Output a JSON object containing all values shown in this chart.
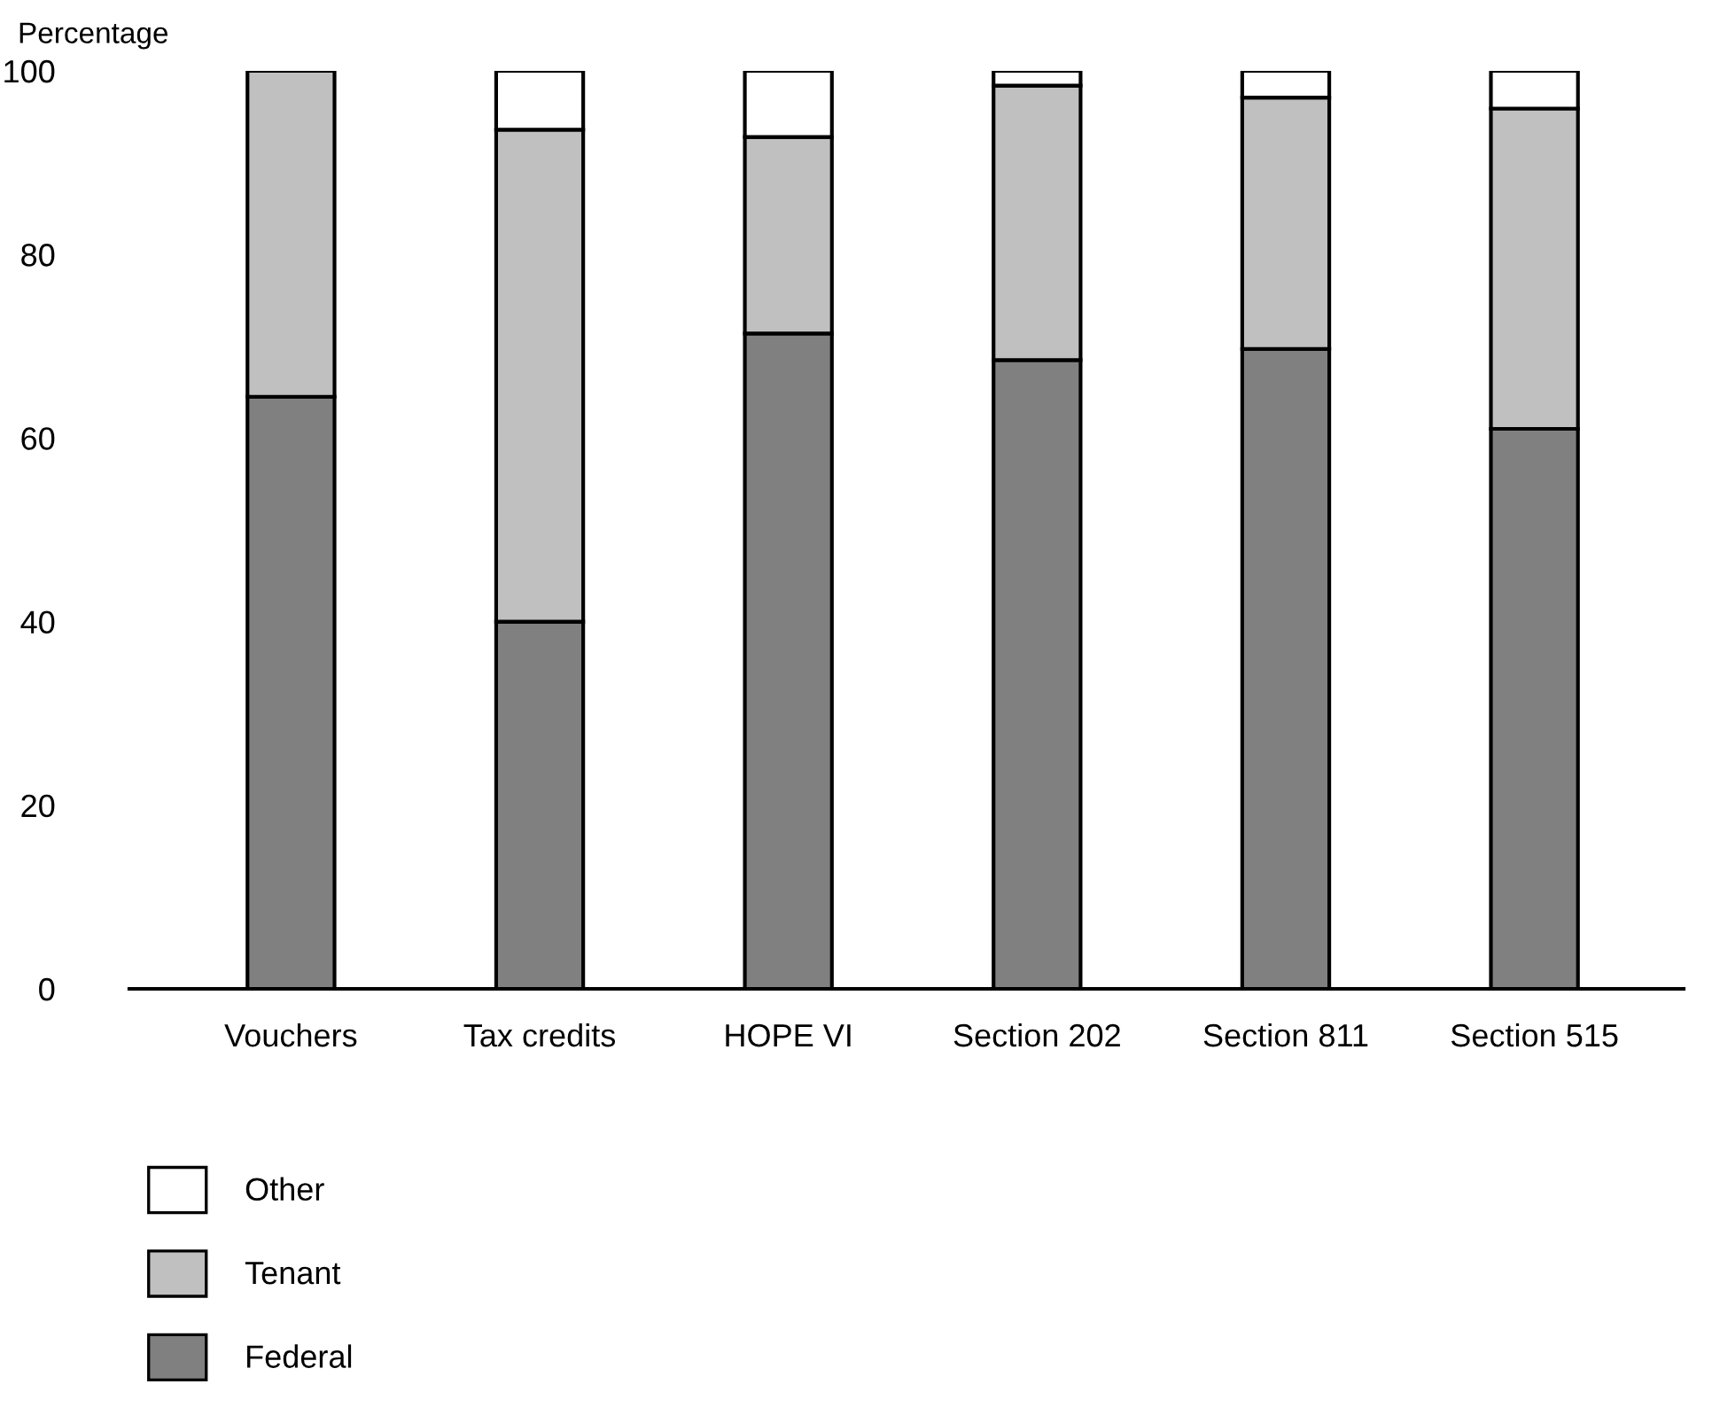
{
  "chart_data": {
    "type": "bar",
    "stacked": true,
    "ylabel": "Percentage",
    "categories": [
      "Vouchers",
      "Tax credits",
      "HOPE VI",
      "Section 202",
      "Section 811",
      "Section 515"
    ],
    "series": [
      {
        "name": "Federal",
        "color": "#808080",
        "values": [
          64.5,
          40,
          71.4,
          68.5,
          69.7,
          61.0
        ]
      },
      {
        "name": "Tenant",
        "color": "#c0c0c0",
        "values": [
          35.5,
          53.6,
          21.4,
          29.9,
          27.4,
          34.9
        ]
      },
      {
        "name": "Other",
        "color": "#ffffff",
        "values": [
          null,
          6.4,
          7.2,
          1.6,
          2.9,
          4.1
        ]
      }
    ],
    "ylim": [
      0,
      100
    ],
    "yticks": [
      0,
      20,
      40,
      60,
      80,
      100
    ],
    "grid": false,
    "legend": "bottom left"
  }
}
